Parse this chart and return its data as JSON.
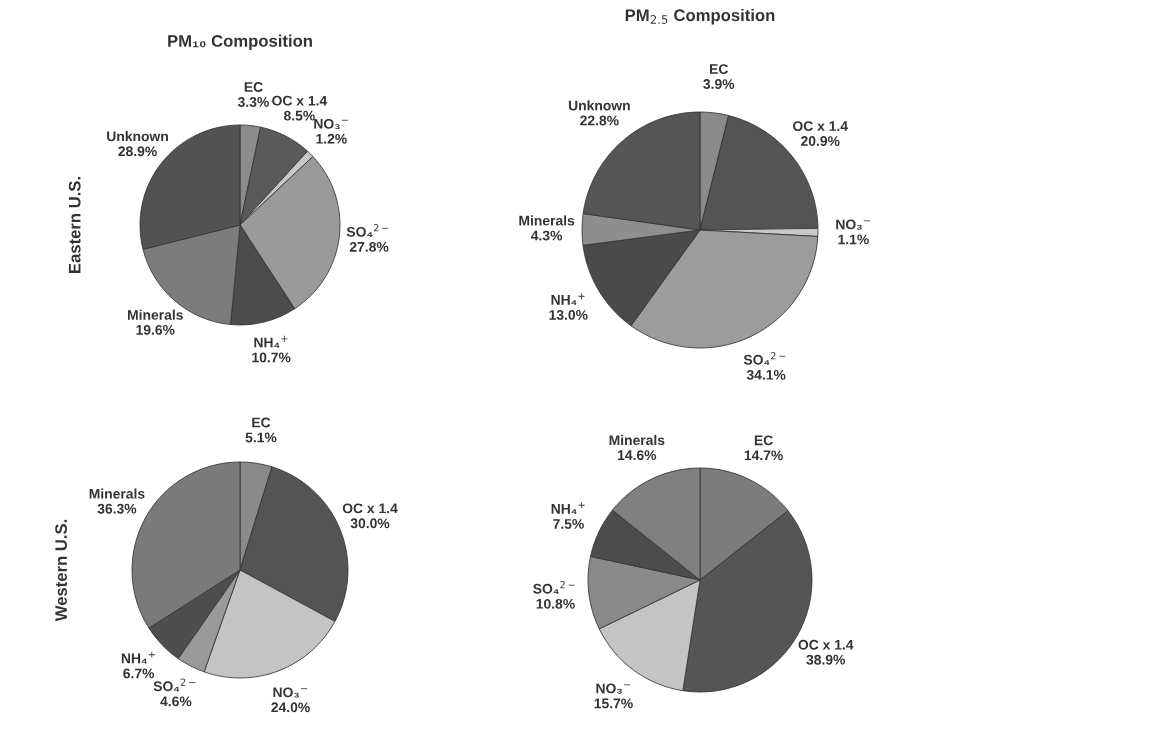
{
  "chart_data": [
    {
      "type": "pie",
      "title": "PM₁₀ Composition",
      "ylabel": "Eastern U.S.",
      "categories": [
        "EC",
        "OC x 1.4",
        "NO₃$^{−}$",
        "SO₄$^{2−}$",
        "NH₄$^{+}$",
        "Minerals",
        "Unknown"
      ],
      "values": [
        3.3,
        8.5,
        1.2,
        27.8,
        10.7,
        19.6,
        28.9
      ],
      "value_labels": [
        "3.3%",
        "8.5%",
        "1.2%",
        "27.8%",
        "10.7%",
        "19.6%",
        "28.9%"
      ],
      "colors": [
        "#8c8c8c",
        "#5a5a5a",
        "#c8c8c8",
        "#9a9a9a",
        "#4c4c4c",
        "#7c7c7c",
        "#525252"
      ]
    },
    {
      "type": "pie",
      "title": "PM$_{2.5}$ Composition",
      "categories": [
        "EC",
        "OC x 1.4",
        "NO₃$^{−}$",
        "SO₄$^{2−}$",
        "NH₄$^{+}$",
        "Minerals",
        "Unknown"
      ],
      "values": [
        3.9,
        20.9,
        1.1,
        34.1,
        13.0,
        4.3,
        22.8
      ],
      "value_labels": [
        "3.9%",
        "20.9%",
        "1.1%",
        "34.1%",
        "13.0%",
        "4.3%",
        "22.8%"
      ],
      "colors": [
        "#8a8a8a",
        "#545454",
        "#c8c8c8",
        "#9c9c9c",
        "#4a4a4a",
        "#8e8e8e",
        "#555555"
      ]
    },
    {
      "type": "pie",
      "ylabel": "Western U.S.",
      "categories": [
        "EC",
        "OC x 1.4",
        "NO₃$^{−}$",
        "SO₄$^{2−}$",
        "NH₄$^{+}$",
        "Minerals"
      ],
      "values": [
        5.1,
        30.0,
        24.0,
        4.6,
        6.7,
        36.3
      ],
      "value_labels": [
        "5.1%",
        "30.0%",
        "24.0%",
        "4.6%",
        "6.7%",
        "36.3%"
      ],
      "colors": [
        "#8a8a8a",
        "#545454",
        "#c4c4c4",
        "#9a9a9a",
        "#4e4e4e",
        "#7a7a7a"
      ]
    },
    {
      "type": "pie",
      "categories": [
        "EC",
        "OC x 1.4",
        "NO₃$^{−}$",
        "SO₄$^{2−}$",
        "NH₄$^{+}$",
        "Minerals"
      ],
      "values": [
        14.7,
        38.9,
        15.7,
        10.8,
        7.5,
        14.6
      ],
      "value_labels": [
        "14.7%",
        "38.9%",
        "15.7%",
        "10.8%",
        "7.5%",
        "14.6%"
      ],
      "colors": [
        "#7c7c7c",
        "#555555",
        "#c4c4c4",
        "#8a8a8a",
        "#4c4c4c",
        "#808080"
      ]
    }
  ]
}
